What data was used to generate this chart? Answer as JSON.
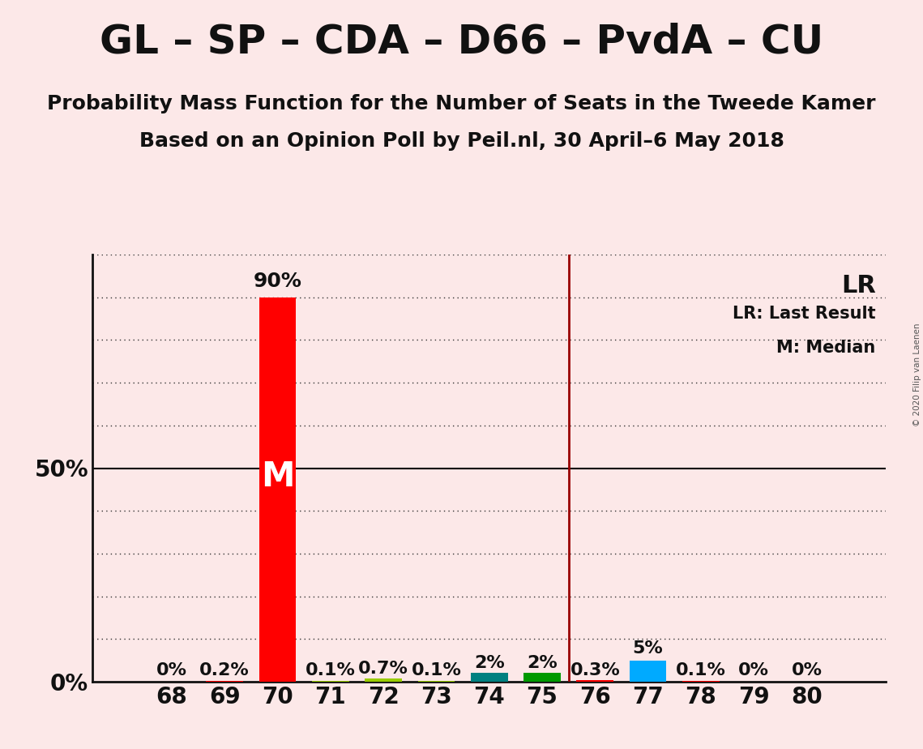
{
  "title": "GL – SP – CDA – D66 – PvdA – CU",
  "subtitle1": "Probability Mass Function for the Number of Seats in the Tweede Kamer",
  "subtitle2": "Based on an Opinion Poll by Peil.nl, 30 April–6 May 2018",
  "copyright": "© 2020 Filip van Laenen",
  "background_color": "#fce8e8",
  "seats": [
    68,
    69,
    70,
    71,
    72,
    73,
    74,
    75,
    76,
    77,
    78,
    79,
    80
  ],
  "probabilities": [
    0.0,
    0.2,
    90.0,
    0.1,
    0.7,
    0.1,
    2.0,
    2.0,
    0.3,
    5.0,
    0.1,
    0.0,
    0.0
  ],
  "bar_colors": [
    "#ff0000",
    "#ff0000",
    "#ff0000",
    "#99cc00",
    "#99cc00",
    "#99cc00",
    "#008080",
    "#009900",
    "#ff0000",
    "#00aaff",
    "#ff0000",
    "#ff0000",
    "#ff0000"
  ],
  "label_texts": [
    "0%",
    "0.2%",
    "90%",
    "0.1%",
    "0.7%",
    "0.1%",
    "2%",
    "2%",
    "0.3%",
    "5%",
    "0.1%",
    "0%",
    "0%"
  ],
  "median_seat": 70,
  "last_result_seat": 75.5,
  "median_label": "M",
  "lr_label": "LR",
  "legend_lr": "LR: Last Result",
  "legend_m": "M: Median",
  "ylim": [
    0,
    100
  ],
  "ytick_positions": [
    0,
    10,
    20,
    30,
    40,
    50,
    60,
    70,
    80,
    90,
    100
  ],
  "title_fontsize": 36,
  "subtitle_fontsize": 18,
  "tick_label_fontsize": 20,
  "pct_label_fontsize": 16,
  "bar_width": 0.7,
  "dotted_line_color": "#333333",
  "vline_color": "#990000",
  "M_label_fontsize": 30,
  "LR_label_fontsize": 22,
  "legend_fontsize": 15
}
